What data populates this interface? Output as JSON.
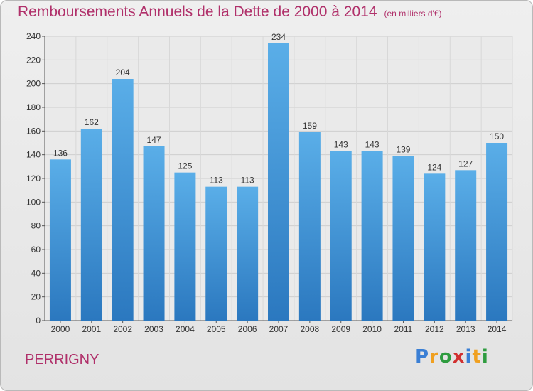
{
  "title": "Remboursements Annuels de la Dette de 2000 à 2014",
  "subtitle": "(en milliers d'€)",
  "town": "PERRIGNY",
  "logo": {
    "letters": [
      "P",
      "r",
      "o",
      "x",
      "i",
      "t",
      "i"
    ],
    "colors": [
      "#3a7fd5",
      "#f0a020",
      "#2e9c3f",
      "#d13030",
      "#3a7fd5",
      "#f0a020",
      "#2e9c3f"
    ]
  },
  "colors": {
    "accent": "#b0306a",
    "bar_light": "#5aaee8",
    "bar_dark": "#2b78bf"
  },
  "chart_data": {
    "type": "bar",
    "categories": [
      "2000",
      "2001",
      "2002",
      "2003",
      "2004",
      "2005",
      "2006",
      "2007",
      "2008",
      "2009",
      "2010",
      "2011",
      "2012",
      "2013",
      "2014"
    ],
    "values": [
      136,
      162,
      204,
      147,
      125,
      113,
      113,
      234,
      159,
      143,
      143,
      139,
      124,
      127,
      150
    ],
    "ylim": [
      0,
      240
    ],
    "yticks": [
      0,
      20,
      40,
      60,
      80,
      100,
      120,
      140,
      160,
      180,
      200,
      220,
      240
    ],
    "grid": true
  }
}
